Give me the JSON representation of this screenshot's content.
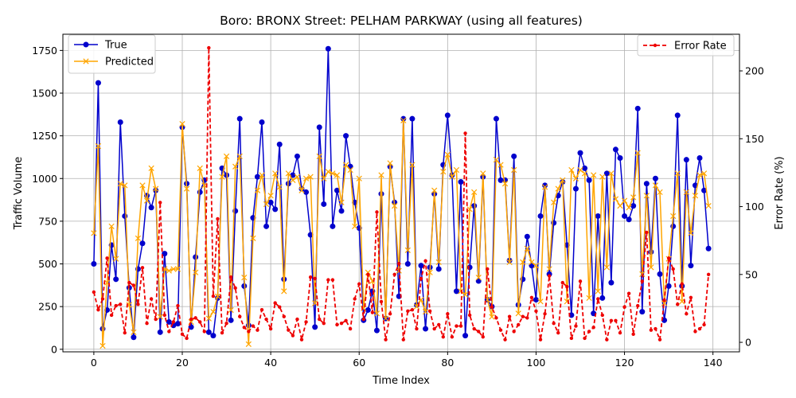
{
  "chart_data": {
    "type": "line",
    "title": "Boro: BRONX Street: PELHAM PARKWAY (using all features)",
    "xlabel": "Time Index",
    "ylabel": "Traffic Volume",
    "y2label": "Error Rate (%)",
    "xlim": [
      -7,
      146
    ],
    "ylim": [
      -15,
      1845
    ],
    "y2lim": [
      -7,
      227
    ],
    "xticks": [
      0,
      20,
      40,
      60,
      80,
      100,
      120,
      140
    ],
    "yticks": [
      0,
      250,
      500,
      750,
      1000,
      1250,
      1500,
      1750
    ],
    "y2ticks": [
      0,
      50,
      100,
      150,
      200
    ],
    "grid": true,
    "legend_left": "upper-left",
    "legend_right": "upper-right",
    "x": [
      0,
      1,
      2,
      3,
      4,
      5,
      6,
      7,
      8,
      9,
      10,
      11,
      12,
      13,
      14,
      15,
      16,
      17,
      18,
      19,
      20,
      21,
      22,
      23,
      24,
      25,
      26,
      27,
      28,
      29,
      30,
      31,
      32,
      33,
      34,
      35,
      36,
      37,
      38,
      39,
      40,
      41,
      42,
      43,
      44,
      45,
      46,
      47,
      48,
      49,
      50,
      51,
      52,
      53,
      54,
      55,
      56,
      57,
      58,
      59,
      60,
      61,
      62,
      63,
      64,
      65,
      66,
      67,
      68,
      69,
      70,
      71,
      72,
      73,
      74,
      75,
      76,
      77,
      78,
      79,
      80,
      81,
      82,
      83,
      84,
      85,
      86,
      87,
      88,
      89,
      90,
      91,
      92,
      93,
      94,
      95,
      96,
      97,
      98,
      99,
      100,
      101,
      102,
      103,
      104,
      105,
      106,
      107,
      108,
      109,
      110,
      111,
      112,
      113,
      114,
      115,
      116,
      117,
      118,
      119,
      120,
      121,
      122,
      123,
      124,
      125,
      126,
      127,
      128,
      129,
      130,
      131,
      132,
      133,
      134,
      135,
      136,
      137,
      138,
      139
    ],
    "series": [
      {
        "name": "True",
        "axis": "left",
        "color": "#0000cc",
        "marker": "circle",
        "dash": "solid",
        "values": [
          500,
          1560,
          120,
          230,
          610,
          410,
          1330,
          780,
          360,
          70,
          470,
          620,
          900,
          830,
          930,
          100,
          560,
          160,
          140,
          150,
          1300,
          970,
          130,
          540,
          920,
          990,
          100,
          80,
          300,
          1060,
          1020,
          170,
          810,
          1350,
          370,
          140,
          770,
          1010,
          1330,
          720,
          860,
          820,
          1200,
          410,
          970,
          1020,
          1130,
          940,
          920,
          670,
          130,
          1300,
          850,
          1760,
          720,
          930,
          810,
          1250,
          1070,
          860,
          710,
          170,
          230,
          340,
          110,
          910,
          180,
          1070,
          860,
          310,
          1350,
          500,
          1350,
          260,
          490,
          120,
          480,
          910,
          470,
          1080,
          1370,
          1020,
          340,
          980,
          80,
          480,
          840,
          400,
          1010,
          290,
          250,
          1350,
          990,
          990,
          520,
          1130,
          260,
          410,
          660,
          490,
          290,
          780,
          960,
          440,
          740,
          900,
          980,
          610,
          200,
          940,
          1150,
          1060,
          990,
          210,
          780,
          300,
          1030,
          390,
          1170,
          1120,
          780,
          760,
          840,
          1410,
          220,
          970,
          570,
          1000,
          440,
          170,
          370,
          720,
          1370,
          370,
          1110,
          490,
          960,
          1120,
          930,
          590
        ]
      },
      {
        "name": "Predicted",
        "axis": "left",
        "color": "#ffa500",
        "marker": "x",
        "dash": "solid",
        "values": [
          680,
          1190,
          20,
          390,
          720,
          530,
          970,
          960,
          260,
          100,
          650,
          960,
          870,
          1060,
          940,
          190,
          470,
          460,
          470,
          470,
          1320,
          940,
          160,
          450,
          1060,
          960,
          180,
          220,
          310,
          1010,
          1130,
          230,
          1070,
          1130,
          420,
          30,
          650,
          930,
          1020,
          850,
          900,
          1030,
          950,
          340,
          1030,
          990,
          1010,
          930,
          1000,
          1010,
          270,
          1130,
          1000,
          1040,
          1030,
          1020,
          860,
          1080,
          1050,
          720,
          1000,
          240,
          450,
          400,
          210,
          1020,
          180,
          1090,
          840,
          460,
          1340,
          580,
          1080,
          250,
          290,
          220,
          450,
          930,
          510,
          1040,
          1140,
          1010,
          1050,
          340,
          320,
          820,
          920,
          420,
          1030,
          290,
          190,
          1110,
          1080,
          970,
          510,
          1050,
          210,
          510,
          590,
          510,
          490,
          280,
          950,
          470,
          860,
          940,
          990,
          280,
          1050,
          1000,
          1050,
          1030,
          300,
          1020,
          340,
          1010,
          480,
          1030,
          880,
          840,
          870,
          830,
          890,
          1150,
          440,
          900,
          480,
          960,
          920,
          270,
          530,
          780,
          1030,
          280,
          920,
          680,
          900,
          1020,
          1030,
          840
        ]
      },
      {
        "name": "Error Rate",
        "axis": "right",
        "color": "#ee0000",
        "marker": "dot",
        "dash": "dashed",
        "values": [
          37,
          24,
          32,
          62,
          20,
          27,
          28,
          7,
          44,
          42,
          28,
          55,
          14,
          32,
          17,
          103,
          20,
          8,
          15,
          27,
          6,
          3,
          17,
          18,
          15,
          8,
          217,
          34,
          91,
          7,
          14,
          48,
          40,
          19,
          11,
          8,
          12,
          9,
          24,
          17,
          10,
          29,
          26,
          19,
          9,
          5,
          17,
          2,
          15,
          48,
          47,
          17,
          14,
          46,
          46,
          13,
          14,
          16,
          10,
          32,
          43,
          17,
          50,
          22,
          96,
          30,
          2,
          21,
          50,
          58,
          2,
          23,
          24,
          10,
          47,
          60,
          23,
          10,
          13,
          4,
          21,
          4,
          12,
          12,
          154,
          20,
          10,
          8,
          4,
          54,
          26,
          18,
          9,
          2,
          19,
          8,
          13,
          19,
          18,
          33,
          23,
          2,
          21,
          49,
          14,
          7,
          44,
          41,
          3,
          12,
          45,
          3,
          8,
          11,
          32,
          20,
          2,
          16,
          16,
          7,
          26,
          36,
          6,
          27,
          45,
          81,
          9,
          10,
          2,
          31,
          62,
          54,
          28,
          43,
          21,
          33,
          8,
          10,
          13,
          50
        ]
      }
    ]
  }
}
